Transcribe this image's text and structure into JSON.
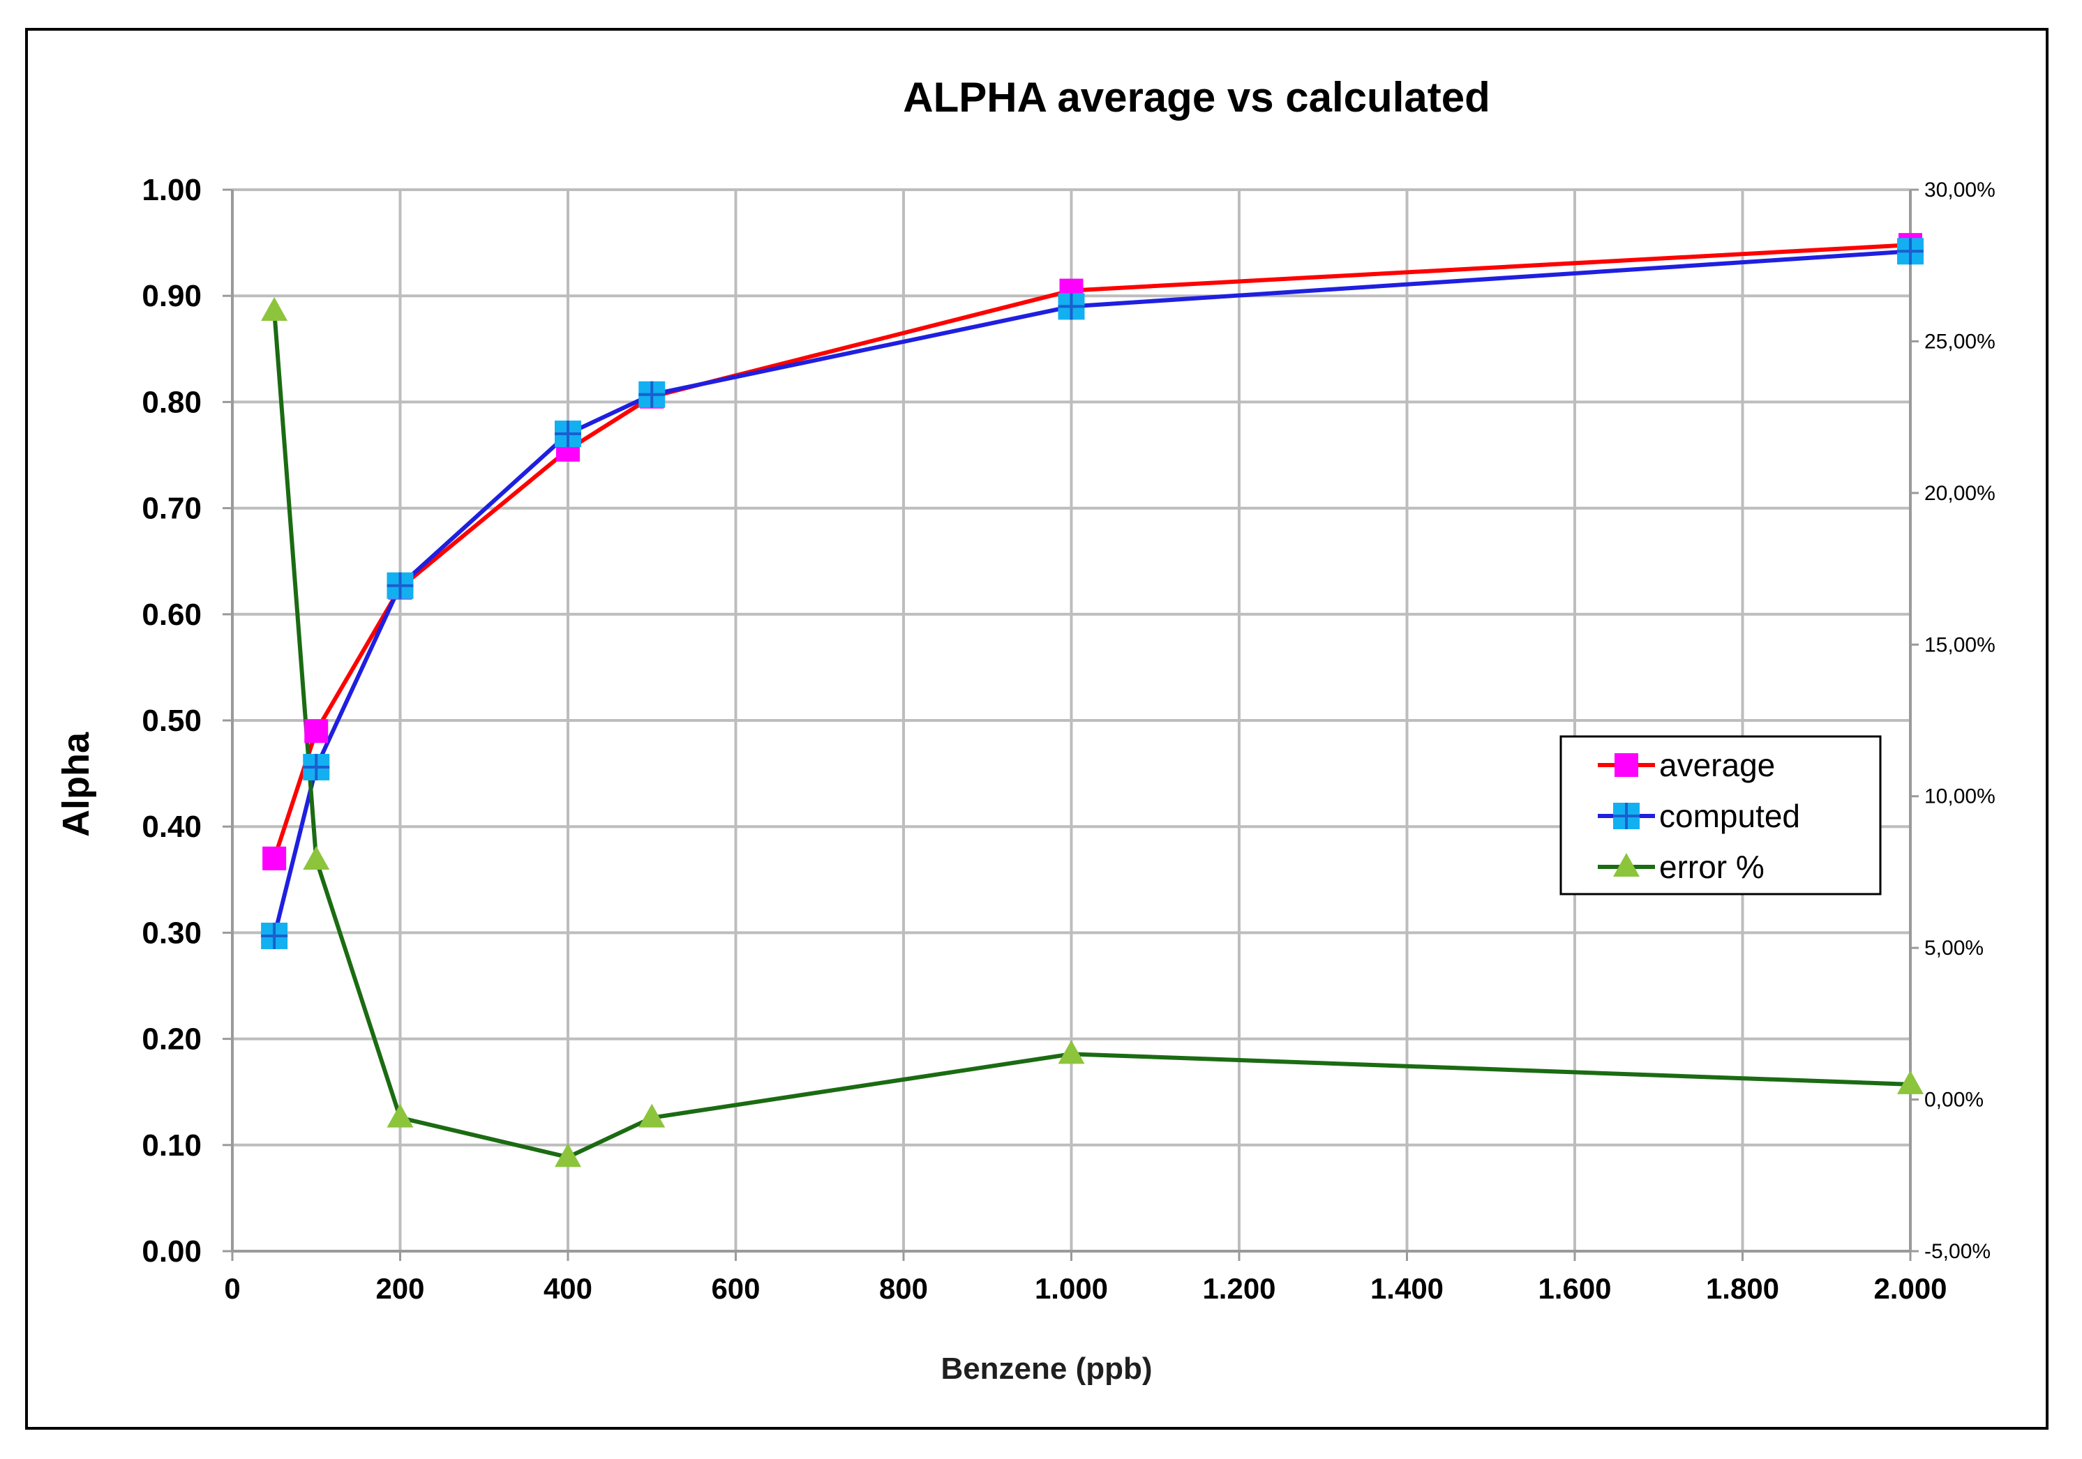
{
  "chart_data": {
    "type": "line",
    "title": "ALPHA  average vs calculated",
    "xlabel": "Benzene (ppb)",
    "ylabel": "Alpha",
    "x_ticks": [
      "0",
      "200",
      "400",
      "600",
      "800",
      "1.000",
      "1.200",
      "1.400",
      "1.600",
      "1.800",
      "2.000"
    ],
    "y_ticks": [
      "0.00",
      "0.10",
      "0.20",
      "0.30",
      "0.40",
      "0.50",
      "0.60",
      "0.70",
      "0.80",
      "0.90",
      "1.00"
    ],
    "y2_ticks": [
      "-5,00%",
      "0,00%",
      "5,00%",
      "10,00%",
      "15,00%",
      "20,00%",
      "25,00%",
      "30,00%"
    ],
    "xlim": [
      0,
      2000
    ],
    "ylim": [
      0,
      1
    ],
    "y2lim": [
      -5,
      30
    ],
    "grid": true,
    "legend_position": "right",
    "x": [
      50,
      100,
      200,
      400,
      500,
      1000,
      2000
    ],
    "series": [
      {
        "name": "average",
        "axis": "left",
        "color": "#ff0000",
        "marker_color": "#ff00ff",
        "marker": "square",
        "values": [
          0.37,
          0.49,
          0.625,
          0.755,
          0.805,
          0.905,
          0.948
        ]
      },
      {
        "name": "computed",
        "axis": "left",
        "color": "#1f1fe0",
        "marker_color": "#12b0f0",
        "marker": "cross-square",
        "values": [
          0.297,
          0.456,
          0.627,
          0.77,
          0.807,
          0.89,
          0.942
        ]
      },
      {
        "name": "error %",
        "axis": "right",
        "color": "#1b6b12",
        "marker_color": "#8cc43c",
        "marker": "triangle",
        "values": [
          26.0,
          7.9,
          -0.6,
          -1.9,
          -0.6,
          1.5,
          0.5
        ]
      }
    ]
  }
}
